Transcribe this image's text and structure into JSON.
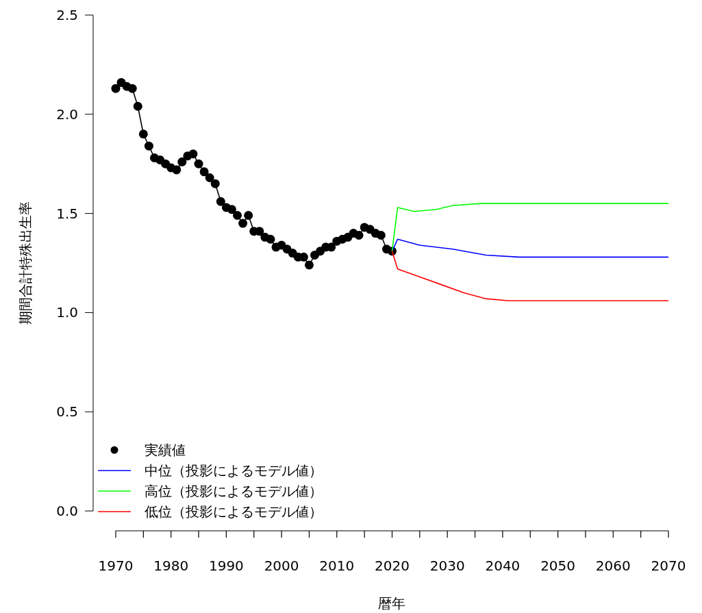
{
  "chart_data": {
    "type": "line",
    "xlabel": "暦年",
    "ylabel": "期間合計特殊出生率",
    "xlim": [
      1970,
      2070
    ],
    "ylim": [
      -0.1,
      2.5
    ],
    "xticks": [
      1970,
      {
        "value": 1975,
        "label": null
      },
      1980,
      {
        "value": 1985,
        "label": null
      },
      1990,
      {
        "value": 1995,
        "label": null
      },
      2000,
      {
        "value": 2005,
        "label": null
      },
      2010,
      {
        "value": 2015,
        "label": null
      },
      2020,
      {
        "value": 2025,
        "label": null
      },
      2030,
      {
        "value": 2035,
        "label": null
      },
      2040,
      {
        "value": 2045,
        "label": null
      },
      2050,
      {
        "value": 2055,
        "label": null
      },
      2060,
      {
        "value": 2065,
        "label": null
      },
      2070
    ],
    "yticks": [
      {
        "value": 0,
        "label": "0.0"
      },
      0.5,
      {
        "value": 1,
        "label": "1.0"
      },
      1.5,
      {
        "value": 2,
        "label": "2.0"
      },
      2.5
    ],
    "grid": false,
    "legend": "bottom left",
    "line_style": "solid",
    "series": [
      {
        "name": "実績値",
        "color": "#000000",
        "marker": "circle",
        "x": [
          1970,
          1971,
          1972,
          1973,
          1974,
          1975,
          1976,
          1977,
          1978,
          1979,
          1980,
          1981,
          1982,
          1983,
          1984,
          1985,
          1986,
          1987,
          1988,
          1989,
          1990,
          1991,
          1992,
          1993,
          1994,
          1995,
          1996,
          1997,
          1998,
          1999,
          2000,
          2001,
          2002,
          2003,
          2004,
          2005,
          2006,
          2007,
          2008,
          2009,
          2010,
          2011,
          2012,
          2013,
          2014,
          2015,
          2016,
          2017,
          2018,
          2019,
          2020
        ],
        "values": [
          2.13,
          2.16,
          2.14,
          2.13,
          2.04,
          1.9,
          1.84,
          1.78,
          1.77,
          1.75,
          1.73,
          1.72,
          1.76,
          1.79,
          1.8,
          1.75,
          1.71,
          1.68,
          1.65,
          1.56,
          1.53,
          1.52,
          1.49,
          1.45,
          1.49,
          1.41,
          1.41,
          1.38,
          1.37,
          1.33,
          1.34,
          1.32,
          1.3,
          1.28,
          1.28,
          1.24,
          1.29,
          1.31,
          1.33,
          1.33,
          1.36,
          1.37,
          1.38,
          1.4,
          1.39,
          1.43,
          1.42,
          1.4,
          1.39,
          1.32,
          1.31
        ]
      },
      {
        "name": "中位（投影によるモデル値）",
        "color": "#0000ff",
        "marker": "none",
        "x": [
          2020,
          2021,
          2025,
          2031,
          2037,
          2043,
          2050,
          2070
        ],
        "values": [
          1.31,
          1.37,
          1.34,
          1.32,
          1.29,
          1.28,
          1.28,
          1.28
        ]
      },
      {
        "name": "高位（投影によるモデル値）",
        "color": "#00ff00",
        "marker": "none",
        "x": [
          2020,
          2021,
          2024,
          2028,
          2031,
          2036,
          2040,
          2050,
          2070
        ],
        "values": [
          1.31,
          1.53,
          1.51,
          1.52,
          1.54,
          1.55,
          1.55,
          1.55,
          1.55
        ]
      },
      {
        "name": "低位（投影によるモデル値）",
        "color": "#ff0000",
        "marker": "none",
        "x": [
          2020,
          2021,
          2025,
          2029,
          2033,
          2037,
          2041,
          2045,
          2070
        ],
        "values": [
          1.31,
          1.22,
          1.18,
          1.14,
          1.1,
          1.07,
          1.06,
          1.06,
          1.06
        ]
      }
    ]
  }
}
